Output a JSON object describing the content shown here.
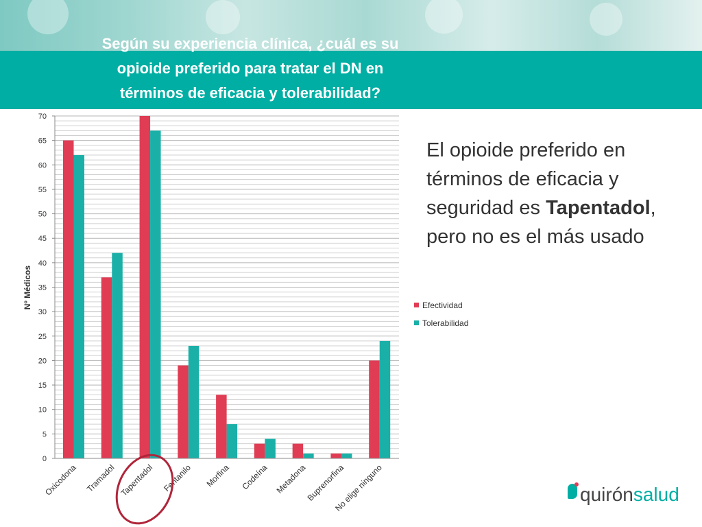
{
  "slide": {
    "title_lines": [
      "Según su experiencia clínica, ¿cuál es su",
      "opioide preferido para tratar el DN en",
      "términos de eficacia y tolerabilidad?"
    ],
    "headline_parts": [
      "El opioide preferido en términos de eficacia y seguridad es ",
      "Tapentadol",
      ", pero no es el más usado"
    ],
    "logo": {
      "part1": "quirón",
      "part2": "salud"
    },
    "colors": {
      "band": "#00aea3",
      "efectividad": "#e03c54",
      "tolerabilidad": "#1ab0a8",
      "circle": "#b0253a"
    }
  },
  "chart_data": {
    "type": "bar",
    "title": "",
    "xlabel": "",
    "ylabel": "Nº Médicos",
    "ylim": [
      0,
      70
    ],
    "yticks": [
      0,
      5,
      10,
      15,
      20,
      25,
      30,
      35,
      40,
      45,
      50,
      55,
      60,
      65,
      70
    ],
    "grid": true,
    "legend_position": "right",
    "categories": [
      "Oxicodona",
      "Tramadol",
      "Tapentadol",
      "Fentanilo",
      "Morfina",
      "Codeína",
      "Metadona",
      "Buprenorfina",
      "No elige ninguno"
    ],
    "highlighted_category": "Tapentadol",
    "series": [
      {
        "name": "Efectividad",
        "color": "#e03c54",
        "values": [
          65,
          37,
          70,
          19,
          13,
          3,
          3,
          1,
          20
        ]
      },
      {
        "name": "Tolerabilidad",
        "color": "#1ab0a8",
        "values": [
          62,
          42,
          67,
          23,
          7,
          4,
          1,
          1,
          24
        ]
      }
    ]
  }
}
